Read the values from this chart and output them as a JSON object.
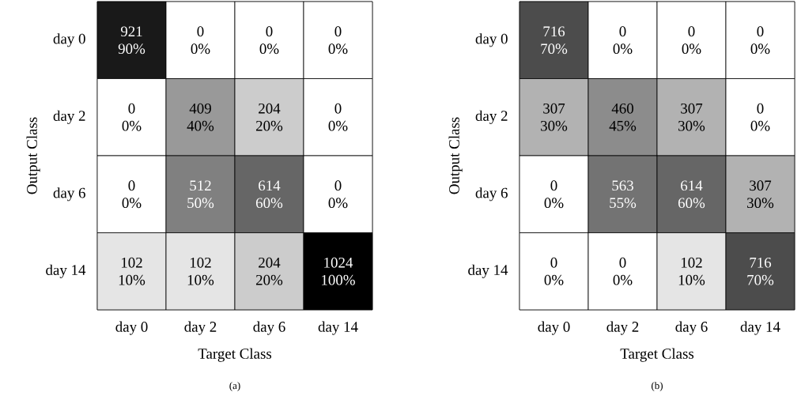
{
  "chart_data": [
    {
      "type": "heatmap",
      "categories": [
        "day 0",
        "day 2",
        "day 6",
        "day 14"
      ],
      "y_categories": [
        "day 0",
        "day 2",
        "day 6",
        "day 14"
      ],
      "cells": [
        [
          921,
          0,
          0,
          0
        ],
        [
          0,
          409,
          204,
          0
        ],
        [
          0,
          512,
          614,
          0
        ],
        [
          102,
          102,
          204,
          1024
        ]
      ],
      "data_labels": true,
      "xlabel": "Target Class",
      "ylabel": "Output Class",
      "annotations": [
        "90%",
        "0%",
        "0%",
        "0%",
        "0%",
        "40%",
        "20%",
        "0%",
        "0%",
        "50%",
        "60%",
        "0%",
        "10%",
        "10%",
        "20%",
        "100%",
        "(a)"
      ]
    },
    {
      "type": "heatmap",
      "categories": [
        "day 0",
        "day 2",
        "day 6",
        "day 14"
      ],
      "y_categories": [
        "day 0",
        "day 2",
        "day 6",
        "day 14"
      ],
      "cells": [
        [
          716,
          0,
          0,
          0
        ],
        [
          307,
          460,
          307,
          0
        ],
        [
          0,
          563,
          614,
          307
        ],
        [
          0,
          0,
          102,
          716
        ]
      ],
      "data_labels": true,
      "xlabel": "Target Class",
      "ylabel": "Output Class",
      "annotations": [
        "70%",
        "0%",
        "0%",
        "0%",
        "30%",
        "45%",
        "30%",
        "0%",
        "0%",
        "55%",
        "60%",
        "30%",
        "0%",
        "0%",
        "10%",
        "70%",
        "(b)"
      ]
    }
  ]
}
